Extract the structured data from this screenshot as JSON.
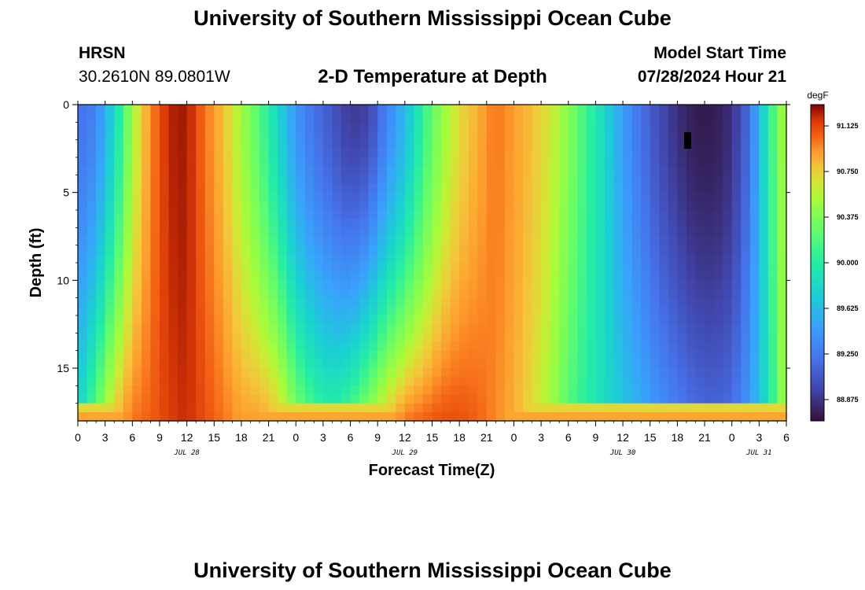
{
  "header": {
    "title_top": "University of Southern Mississippi Ocean Cube",
    "title_bottom": "University of Southern Mississippi Ocean Cube",
    "station": "HRSN",
    "coordinates": "30.2610N  89.0801W",
    "plot_title": "2-D Temperature at Depth",
    "model_start_label": "Model Start Time",
    "model_start_value": "07/28/2024 Hour 21"
  },
  "chart_data": {
    "type": "heatmap",
    "title": "2-D Temperature at Depth",
    "xlabel": "Forecast Time(Z)",
    "ylabel": "Depth (ft)",
    "x_range_hours": [
      0,
      78
    ],
    "y_range_ft": [
      0,
      18
    ],
    "x_ticks_hours": [
      0,
      3,
      6,
      9,
      12,
      15,
      18,
      21,
      24,
      27,
      30,
      33,
      36,
      39,
      42,
      45,
      48,
      51,
      54,
      57,
      60,
      63,
      66,
      69,
      72,
      75,
      78
    ],
    "x_tick_labels": [
      "0",
      "3",
      "6",
      "9",
      "12",
      "15",
      "18",
      "21",
      "0",
      "3",
      "6",
      "9",
      "12",
      "15",
      "18",
      "21",
      "0",
      "3",
      "6",
      "9",
      "12",
      "15",
      "18",
      "21",
      "0",
      "3",
      "6"
    ],
    "date_labels": [
      {
        "text": "JUL 28",
        "hour": 12
      },
      {
        "text": "JUL 29",
        "hour": 36
      },
      {
        "text": "JUL 30",
        "hour": 60
      },
      {
        "text": "JUL 31",
        "hour": 75
      }
    ],
    "y_ticks": [
      0,
      5,
      10,
      15
    ],
    "y_tick_labels": [
      "0",
      "5",
      "10",
      "15"
    ],
    "colorbar": {
      "unit": "degF",
      "min": 88.7,
      "max": 91.3,
      "ticks": [
        88.875,
        89.25,
        89.625,
        90.0,
        90.375,
        90.75,
        91.125
      ],
      "tick_labels": [
        "88.875",
        "89.250",
        "89.625",
        "90.000",
        "90.375",
        "90.750",
        "91.125"
      ]
    },
    "surface_profile": [
      [
        0,
        89.2
      ],
      [
        2,
        89.3
      ],
      [
        4,
        89.8
      ],
      [
        6,
        90.5
      ],
      [
        8,
        90.95
      ],
      [
        10,
        91.22
      ],
      [
        12,
        91.25
      ],
      [
        14,
        91.0
      ],
      [
        16,
        90.8
      ],
      [
        18,
        90.5
      ],
      [
        20,
        90.2
      ],
      [
        22,
        89.8
      ],
      [
        24,
        89.4
      ],
      [
        26,
        89.2
      ],
      [
        28,
        89.05
      ],
      [
        30,
        88.9
      ],
      [
        32,
        88.95
      ],
      [
        34,
        89.3
      ],
      [
        36,
        89.6
      ],
      [
        38,
        90.05
      ],
      [
        40,
        90.45
      ],
      [
        42,
        90.7
      ],
      [
        44,
        90.85
      ],
      [
        46,
        91.0
      ],
      [
        48,
        90.9
      ],
      [
        50,
        90.8
      ],
      [
        52,
        90.65
      ],
      [
        54,
        90.4
      ],
      [
        56,
        90.1
      ],
      [
        58,
        89.8
      ],
      [
        60,
        89.45
      ],
      [
        62,
        89.2
      ],
      [
        64,
        89.0
      ],
      [
        66,
        88.85
      ],
      [
        68,
        88.75
      ],
      [
        70,
        88.75
      ],
      [
        72,
        88.85
      ],
      [
        74,
        89.2
      ],
      [
        76,
        90.0
      ],
      [
        78,
        90.6
      ]
    ],
    "bottom_profile": [
      [
        0,
        89.8
      ],
      [
        2,
        90.3
      ],
      [
        4,
        90.8
      ],
      [
        6,
        91.0
      ],
      [
        8,
        91.05
      ],
      [
        10,
        91.15
      ],
      [
        12,
        91.2
      ],
      [
        14,
        91.1
      ],
      [
        16,
        91.0
      ],
      [
        18,
        90.9
      ],
      [
        20,
        90.9
      ],
      [
        22,
        90.8
      ],
      [
        24,
        90.4
      ],
      [
        26,
        90.15
      ],
      [
        28,
        90.05
      ],
      [
        30,
        90.2
      ],
      [
        32,
        90.5
      ],
      [
        34,
        90.8
      ],
      [
        36,
        91.0
      ],
      [
        38,
        91.05
      ],
      [
        40,
        91.1
      ],
      [
        42,
        91.1
      ],
      [
        44,
        91.05
      ],
      [
        46,
        90.95
      ],
      [
        48,
        90.85
      ],
      [
        50,
        90.7
      ],
      [
        52,
        90.5
      ],
      [
        54,
        90.2
      ],
      [
        56,
        90.0
      ],
      [
        58,
        89.85
      ],
      [
        60,
        89.7
      ],
      [
        62,
        89.55
      ],
      [
        64,
        89.4
      ],
      [
        66,
        89.3
      ],
      [
        68,
        89.2
      ],
      [
        70,
        89.15
      ],
      [
        72,
        89.2
      ],
      [
        74,
        89.45
      ],
      [
        76,
        89.9
      ],
      [
        78,
        90.6
      ]
    ]
  }
}
